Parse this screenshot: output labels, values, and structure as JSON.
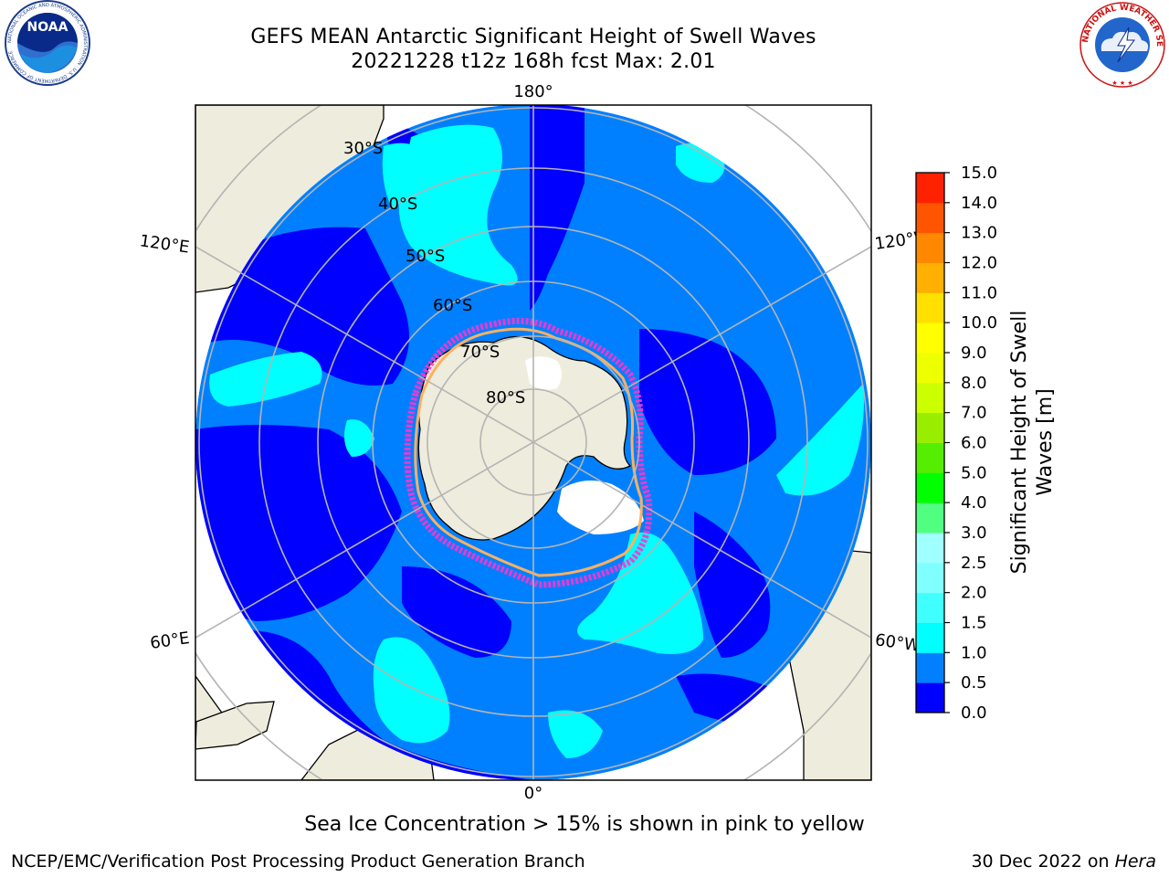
{
  "header": {
    "title_line1": "GEFS MEAN Antarctic Significant Height of Swell Waves",
    "title_line2": "20221228 t12z 168h fcst   Max: 2.01"
  },
  "logos": {
    "noaa": {
      "word": "NOAA",
      "ring_text": "NATIONAL OCEANIC AND ATMOSPHERIC ADMINISTRATION · U.S. DEPARTMENT OF COMMERCE"
    },
    "nws": {
      "ring_text": "NATIONAL WEATHER SERVICE"
    }
  },
  "map": {
    "projection": "South polar stereographic",
    "latitude_labels": [
      "30°S",
      "40°S",
      "50°S",
      "60°S",
      "70°S",
      "80°S"
    ],
    "longitude_labels": {
      "top": "180°",
      "bottom": "0°",
      "upper_left": "120°E",
      "lower_left": "60°E",
      "upper_right": "120°W",
      "lower_right": "60°W"
    },
    "colors": {
      "land": "#eeecdc",
      "ice_free_land": "#ffffff",
      "sea_ice_edge": [
        "#ff33cc",
        "#ff9966",
        "#ffcc33"
      ],
      "graticule": "#b4b4b4"
    }
  },
  "colorbar": {
    "label_line1": "Significant Height of Swell",
    "label_line2": "Waves [m]",
    "ticks": [
      "0.0",
      "0.5",
      "1.0",
      "1.5",
      "2.0",
      "2.5",
      "3.0",
      "4.0",
      "5.0",
      "6.0",
      "7.0",
      "8.0",
      "9.0",
      "10.0",
      "11.0",
      "12.0",
      "13.0",
      "14.0",
      "15.0"
    ],
    "colors": [
      "#0000ff",
      "#0080ff",
      "#00ffff",
      "#40ffff",
      "#80ffff",
      "#a0ffff",
      "#50ff80",
      "#00ff00",
      "#55ee00",
      "#99ee00",
      "#ccff00",
      "#eeff00",
      "#ffff00",
      "#ffe000",
      "#ffb000",
      "#ff8800",
      "#ff5500",
      "#ff2200"
    ]
  },
  "footer": {
    "caption": "Sea Ice Concentration > 15% is shown in pink to yellow",
    "credit": "NCEP/EMC/Verification Post Processing Product Generation Branch",
    "date": "30 Dec 2022 on ",
    "host": "Hera"
  }
}
